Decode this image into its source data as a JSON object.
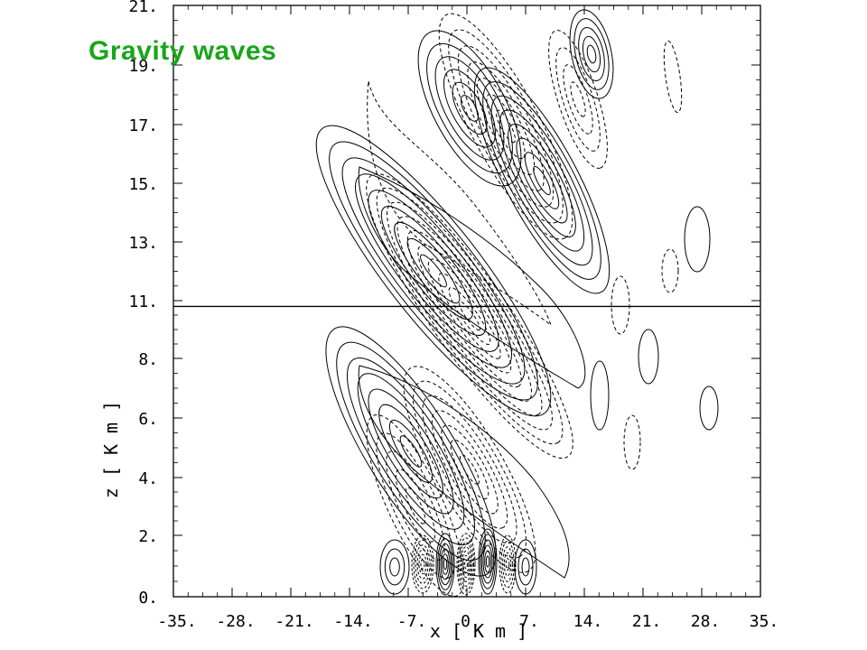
{
  "slide": {
    "title": "Gravity waves",
    "title_color": "#1aa51a"
  },
  "chart_data": {
    "type": "contour",
    "xlabel": "x [ K m ]",
    "ylabel": "z [ K m ]",
    "xlim": [
      -35,
      35
    ],
    "ylim": [
      0,
      21
    ],
    "x_ticks": [
      -35,
      -28,
      -21,
      -14,
      -7,
      0,
      7,
      14,
      21,
      28,
      35
    ],
    "x_tick_labels": [
      "-35.",
      "-28.",
      "-21.",
      "-14.",
      "-7.",
      "0.",
      "7.",
      "14.",
      "21.",
      "28.",
      "35."
    ],
    "y_ticks": [
      0,
      2,
      4,
      6,
      8,
      11,
      13,
      15,
      17,
      19,
      21
    ],
    "y_tick_labels": [
      "0.",
      "2.",
      "4.",
      "6.",
      "8.",
      "11.",
      "13.",
      "15.",
      "17.",
      "19.",
      "21."
    ],
    "positive_contour_style": "solid",
    "negative_contour_style": "dashed",
    "tropopause_height_km": 10.7
  }
}
